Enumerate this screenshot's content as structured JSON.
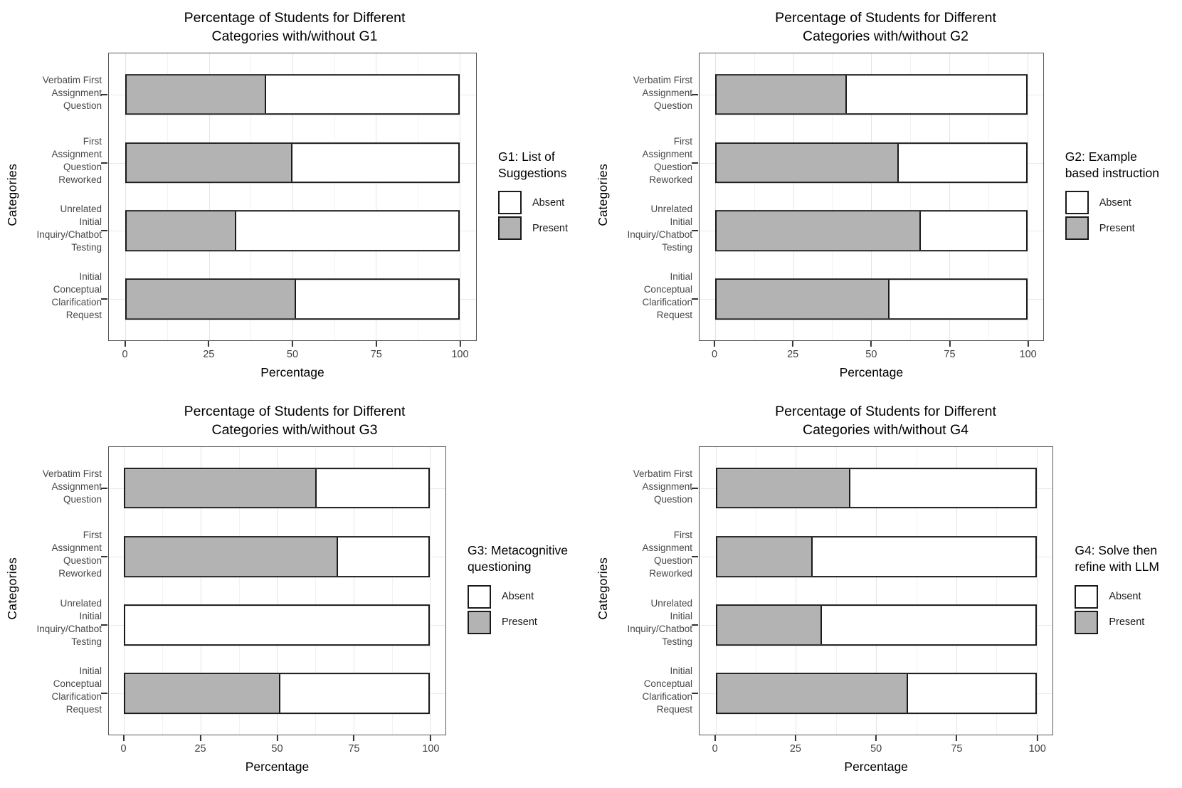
{
  "page": {
    "background": "#ffffff"
  },
  "shared_style": {
    "present_fill": "#b3b3b3",
    "absent_fill": "#ffffff",
    "bar_border": "#1a1a1a",
    "panel_border": "#595959",
    "grid_major": "#e4e4e4",
    "grid_minor": "#f2f2f2",
    "axis_text_color": "#404040"
  },
  "chart_data": [
    {
      "type": "bar",
      "orientation": "horizontal",
      "stacked": true,
      "title_line1": "Percentage of Students for Different",
      "title_line2": "Categories with/without G1",
      "legend_title": "G1: List of\nSuggestions",
      "legend_position": "right",
      "xlabel": "Percentage",
      "ylabel": "Categories",
      "xlim": [
        0,
        100
      ],
      "x_ticks": [
        0,
        25,
        50,
        75,
        100
      ],
      "x_minor_gridlines": [
        12.5,
        37.5,
        62.5,
        87.5
      ],
      "categories": [
        "Verbatim First\nAssignment\nQuestion",
        "First\nAssignment\nQuestion\nReworked",
        "Unrelated\nInitial\nInquiry/Chatbot\nTesting",
        "Initial\nConceptual\nClarification\nRequest"
      ],
      "series": [
        {
          "name": "Present",
          "color": "#b3b3b3",
          "values": [
            42,
            50,
            33,
            51
          ]
        },
        {
          "name": "Absent",
          "color": "#ffffff",
          "values": [
            58,
            50,
            67,
            49
          ]
        }
      ],
      "legend_items": [
        {
          "label": "Absent",
          "fill": "#ffffff"
        },
        {
          "label": "Present",
          "fill": "#b3b3b3"
        }
      ]
    },
    {
      "type": "bar",
      "orientation": "horizontal",
      "stacked": true,
      "title_line1": "Percentage of Students for Different",
      "title_line2": "Categories with/without G2",
      "legend_title": "G2: Example\nbased instruction",
      "legend_position": "right",
      "xlabel": "Percentage",
      "ylabel": "Categories",
      "xlim": [
        0,
        100
      ],
      "x_ticks": [
        0,
        25,
        50,
        75,
        100
      ],
      "x_minor_gridlines": [
        12.5,
        37.5,
        62.5,
        87.5
      ],
      "categories": [
        "Verbatim First\nAssignment\nQuestion",
        "First\nAssignment\nQuestion\nReworked",
        "Unrelated\nInitial\nInquiry/Chatbot\nTesting",
        "Initial\nConceptual\nClarification\nRequest"
      ],
      "series": [
        {
          "name": "Present",
          "color": "#b3b3b3",
          "values": [
            42,
            59,
            66,
            56
          ]
        },
        {
          "name": "Absent",
          "color": "#ffffff",
          "values": [
            58,
            41,
            34,
            44
          ]
        }
      ],
      "legend_items": [
        {
          "label": "Absent",
          "fill": "#ffffff"
        },
        {
          "label": "Present",
          "fill": "#b3b3b3"
        }
      ]
    },
    {
      "type": "bar",
      "orientation": "horizontal",
      "stacked": true,
      "title_line1": "Percentage of Students for Different",
      "title_line2": "Categories with/without G3",
      "legend_title": "G3: Metacognitive\nquestioning",
      "legend_position": "right",
      "xlabel": "Percentage",
      "ylabel": "Categories",
      "xlim": [
        0,
        100
      ],
      "x_ticks": [
        0,
        25,
        50,
        75,
        100
      ],
      "x_minor_gridlines": [
        12.5,
        37.5,
        62.5,
        87.5
      ],
      "categories": [
        "Verbatim First\nAssignment\nQuestion",
        "First\nAssignment\nQuestion\nReworked",
        "Unrelated\nInitial\nInquiry/Chatbot\nTesting",
        "Initial\nConceptual\nClarification\nRequest"
      ],
      "series": [
        {
          "name": "Present",
          "color": "#b3b3b3",
          "values": [
            63,
            70,
            0,
            51
          ]
        },
        {
          "name": "Absent",
          "color": "#ffffff",
          "values": [
            37,
            30,
            100,
            49
          ]
        }
      ],
      "legend_items": [
        {
          "label": "Absent",
          "fill": "#ffffff"
        },
        {
          "label": "Present",
          "fill": "#b3b3b3"
        }
      ]
    },
    {
      "type": "bar",
      "orientation": "horizontal",
      "stacked": true,
      "title_line1": "Percentage of Students for Different",
      "title_line2": "Categories with/without G4",
      "legend_title": "G4: Solve then\nrefine with LLM",
      "legend_position": "right",
      "xlabel": "Percentage",
      "ylabel": "Categories",
      "xlim": [
        0,
        100
      ],
      "x_ticks": [
        0,
        25,
        50,
        75,
        100
      ],
      "x_minor_gridlines": [
        12.5,
        37.5,
        62.5,
        87.5
      ],
      "categories": [
        "Verbatim First\nAssignment\nQuestion",
        "First\nAssignment\nQuestion\nReworked",
        "Unrelated\nInitial\nInquiry/Chatbot\nTesting",
        "Initial\nConceptual\nClarification\nRequest"
      ],
      "series": [
        {
          "name": "Present",
          "color": "#b3b3b3",
          "values": [
            42,
            30,
            33,
            60
          ]
        },
        {
          "name": "Absent",
          "color": "#ffffff",
          "values": [
            58,
            70,
            67,
            40
          ]
        }
      ],
      "legend_items": [
        {
          "label": "Absent",
          "fill": "#ffffff"
        },
        {
          "label": "Present",
          "fill": "#b3b3b3"
        }
      ]
    }
  ]
}
